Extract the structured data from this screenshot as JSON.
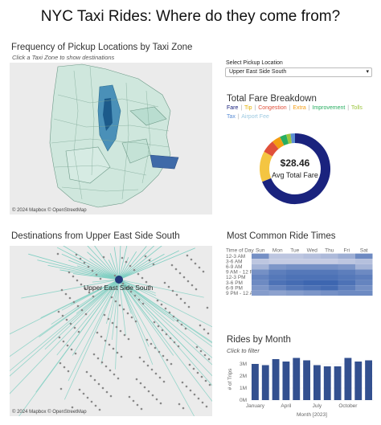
{
  "title": "NYC Taxi Rides: Where do they come from?",
  "pickup_map": {
    "title": "Frequency of Pickup Locations by Taxi Zone",
    "subtitle": "Click a Taxi Zone to show destinations",
    "credit": "© 2024 Mapbox © OpenStreetMap"
  },
  "selector": {
    "label": "Select Pickup Location",
    "value": "Upper East Side South"
  },
  "fare": {
    "title": "Total Fare Breakdown",
    "legend": [
      {
        "label": "Fare",
        "color": "#1a237e"
      },
      {
        "label": "Tip",
        "color": "#f4c542"
      },
      {
        "label": "Congestion",
        "color": "#e0503a"
      },
      {
        "label": "Extra",
        "color": "#f39c12"
      },
      {
        "label": "Improvement",
        "color": "#27ae60"
      },
      {
        "label": "Tolls",
        "color": "#9bc53d"
      },
      {
        "label": "Tax",
        "color": "#5d8fd6"
      },
      {
        "label": "Airport Fee",
        "color": "#9ecae1"
      }
    ],
    "separators": [
      "|",
      "|",
      "|",
      "|",
      "|",
      "|"
    ],
    "center_value": "$28.46",
    "center_label": "Avg Total Fare",
    "shares": [
      0.69,
      0.14,
      0.06,
      0.04,
      0.03,
      0.02,
      0.02
    ]
  },
  "dest_map": {
    "title": "Destinations from Upper East Side South",
    "origin_label": "Upper East Side South",
    "credit": "© 2024 Mapbox © OpenStreetMap"
  },
  "ride_times": {
    "title": "Most Common Ride Times",
    "corner": "Time of Day",
    "days": [
      "Sun",
      "Mon",
      "Tue",
      "Wed",
      "Thu",
      "Fri",
      "Sat"
    ],
    "rows": [
      "12-3 AM",
      "3-6 AM",
      "6-9 AM",
      "9 AM - 12 PM",
      "12-3 PM",
      "3-6 PM",
      "6-9 PM",
      "9 PM - 12 AM"
    ],
    "intensity": [
      [
        0.55,
        0.1,
        0.1,
        0.15,
        0.2,
        0.3,
        0.6
      ],
      [
        0.1,
        0.05,
        0.05,
        0.05,
        0.05,
        0.1,
        0.15
      ],
      [
        0.25,
        0.5,
        0.55,
        0.55,
        0.55,
        0.5,
        0.25
      ],
      [
        0.55,
        0.7,
        0.75,
        0.75,
        0.75,
        0.7,
        0.6
      ],
      [
        0.65,
        0.75,
        0.8,
        0.8,
        0.8,
        0.75,
        0.7
      ],
      [
        0.6,
        0.8,
        0.85,
        0.9,
        0.9,
        0.8,
        0.65
      ],
      [
        0.5,
        0.65,
        0.75,
        0.8,
        0.85,
        0.7,
        0.55
      ],
      [
        0.45,
        0.4,
        0.45,
        0.5,
        0.55,
        0.6,
        0.6
      ]
    ]
  },
  "rides_by_month": {
    "title": "Rides by Month",
    "subtitle": "Click to filter",
    "ylabel": "# of Trips",
    "xlabel": "Month [2023]",
    "y_ticks": [
      "3M",
      "2M",
      "1M",
      "0M"
    ],
    "x_ticks": [
      "January",
      "April",
      "July",
      "October"
    ]
  },
  "chart_data": {
    "type": "bar",
    "categories": [
      "Jan",
      "Feb",
      "Mar",
      "Apr",
      "May",
      "Jun",
      "Jul",
      "Aug",
      "Sep",
      "Oct",
      "Nov",
      "Dec"
    ],
    "values": [
      3.0,
      2.9,
      3.4,
      3.2,
      3.5,
      3.3,
      2.9,
      2.8,
      2.8,
      3.5,
      3.2,
      3.3
    ],
    "ylabel": "# of Trips",
    "xlabel": "Month [2023]",
    "ylim": [
      0,
      3.6
    ],
    "unit": "M"
  }
}
